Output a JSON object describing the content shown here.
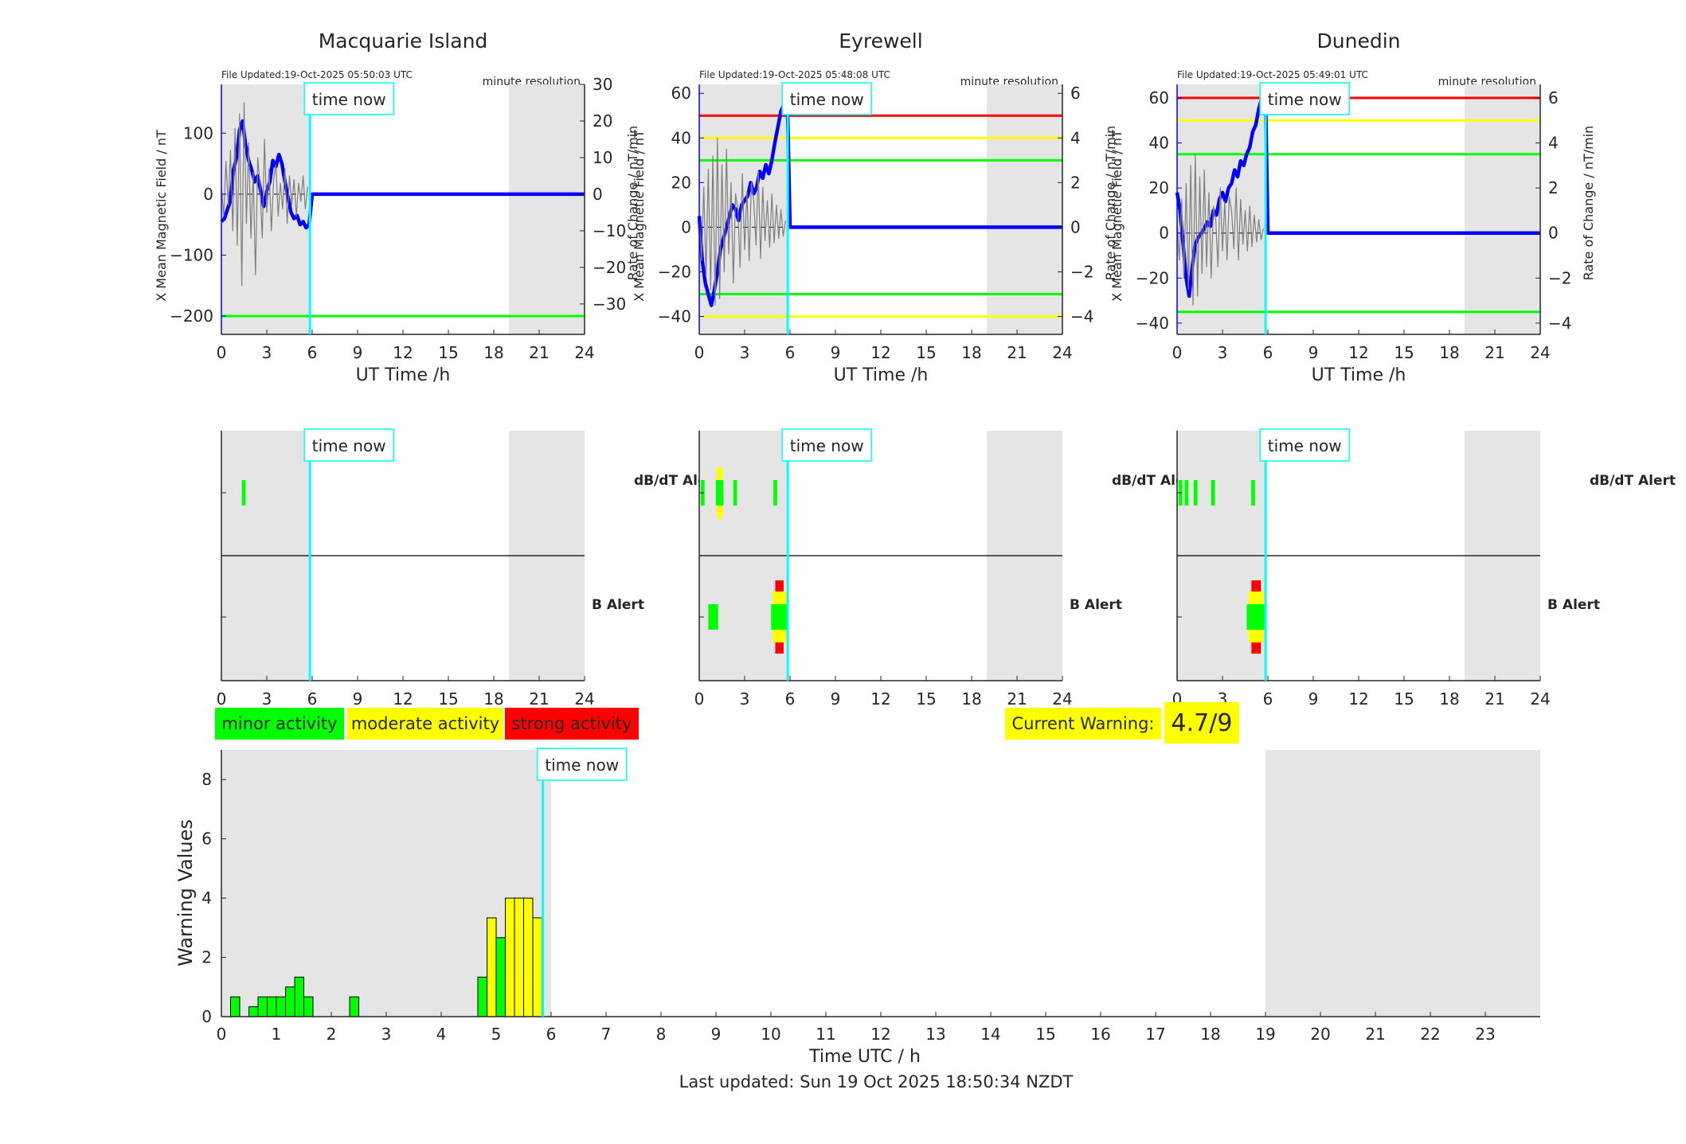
{
  "page": {
    "footer": "Last updated: Sun 19 Oct 2025 18:50:34 NZDT",
    "current_warning_label": "Current Warning:",
    "current_warning_value": "4.7/9",
    "colors": {
      "minor": "#00ff00",
      "moderate": "#ffff00",
      "strong": "#ff0000",
      "x_series": "#0000ff",
      "now_line": "#00ffff",
      "shade": "#e5e5e5"
    }
  },
  "legend": {
    "minor": "minor activity",
    "moderate": "moderate activity",
    "strong": "strong activity"
  },
  "chart_data": [
    {
      "id": "macquarie",
      "type": "line",
      "title": "Macquarie Island",
      "file_updated": "File Updated:19-Oct-2025 05:50:03 UTC",
      "resolution": "minute resolution",
      "now_label": "time now",
      "xlabel": "UT Time /h",
      "ylabel_left": "X Mean Magnetic Field / nT",
      "ylabel_right": "Rate of Change / nT/min",
      "xlim": [
        0,
        24
      ],
      "xticks": [
        0,
        3,
        6,
        9,
        12,
        15,
        18,
        21,
        24
      ],
      "ylim_left": [
        -230,
        180
      ],
      "yticks_left": [
        -200,
        -100,
        0,
        100
      ],
      "ylim_right": [
        -38.3,
        30
      ],
      "yticks_right": [
        -30,
        -20,
        -10,
        0,
        10,
        20,
        30
      ],
      "grid": false,
      "time_now": 5.85,
      "shade_spans": [
        [
          0,
          5.85
        ],
        [
          19,
          24
        ]
      ],
      "thresholds": [
        {
          "value": -200,
          "color": "#00ff00"
        }
      ],
      "series": [
        {
          "axis": "left",
          "color": "#0000ff",
          "x": [
            0,
            0.2,
            0.4,
            0.6,
            0.8,
            1.0,
            1.2,
            1.4,
            1.6,
            1.8,
            2.0,
            2.2,
            2.4,
            2.6,
            2.8,
            3.0,
            3.2,
            3.4,
            3.6,
            3.8,
            4.0,
            4.2,
            4.4,
            4.6,
            4.8,
            5.0,
            5.2,
            5.4,
            5.6,
            5.8,
            6,
            24
          ],
          "values": [
            -45,
            -40,
            -25,
            -10,
            40,
            60,
            105,
            120,
            80,
            55,
            40,
            20,
            30,
            5,
            -20,
            5,
            20,
            55,
            45,
            65,
            50,
            20,
            -5,
            -30,
            -40,
            -35,
            -50,
            -45,
            -55,
            -50,
            0,
            0
          ]
        },
        {
          "axis": "right",
          "color": "#7f7f7f",
          "x": [
            0,
            0.15,
            0.3,
            0.45,
            0.6,
            0.75,
            0.9,
            1.05,
            1.2,
            1.35,
            1.5,
            1.65,
            1.8,
            1.95,
            2.1,
            2.25,
            2.4,
            2.55,
            2.7,
            2.85,
            3.0,
            3.15,
            3.3,
            3.45,
            3.6,
            3.75,
            3.9,
            4.05,
            4.2,
            4.35,
            4.5,
            4.65,
            4.8,
            4.95,
            5.1,
            5.25,
            5.4,
            5.55,
            5.7
          ],
          "values": [
            2,
            -6,
            9,
            -3,
            12,
            -10,
            18,
            -14,
            22,
            -25,
            25,
            -8,
            14,
            -12,
            6,
            -22,
            10,
            3,
            -12,
            15,
            -5,
            7,
            -10,
            4,
            8,
            -6,
            3,
            -4,
            7,
            -8,
            5,
            -3,
            4,
            -6,
            3,
            -2,
            5,
            -4,
            2
          ]
        }
      ]
    },
    {
      "id": "eyrewell",
      "type": "line",
      "title": "Eyrewell",
      "file_updated": "File Updated:19-Oct-2025 05:48:08 UTC",
      "resolution": "minute resolution",
      "now_label": "time now",
      "xlabel": "UT Time /h",
      "ylabel_left": "X Mean Magnetic Field / nT",
      "ylabel_right": "Rate of Change / nT/min",
      "xlim": [
        0,
        24
      ],
      "xticks": [
        0,
        3,
        6,
        9,
        12,
        15,
        18,
        21,
        24
      ],
      "ylim_left": [
        -48,
        64
      ],
      "yticks_left": [
        -40,
        -20,
        0,
        20,
        40,
        60
      ],
      "ylim_right": [
        -4.8,
        6.4
      ],
      "yticks_right": [
        -4,
        -2,
        0,
        2,
        4,
        6
      ],
      "grid": false,
      "time_now": 5.85,
      "shade_spans": [
        [
          0,
          5.85
        ],
        [
          19,
          24
        ]
      ],
      "thresholds": [
        {
          "value": 50,
          "color": "#ff0000"
        },
        {
          "value": 40,
          "color": "#ffff00"
        },
        {
          "value": 30,
          "color": "#00ff00"
        },
        {
          "value": -30,
          "color": "#00ff00"
        },
        {
          "value": -40,
          "color": "#ffff00"
        }
      ],
      "series": [
        {
          "axis": "left",
          "color": "#0000ff",
          "x": [
            0,
            0.2,
            0.4,
            0.6,
            0.8,
            1.0,
            1.2,
            1.4,
            1.6,
            1.8,
            2.0,
            2.2,
            2.4,
            2.6,
            2.8,
            3.0,
            3.2,
            3.4,
            3.6,
            3.8,
            4.0,
            4.2,
            4.4,
            4.6,
            4.8,
            5.0,
            5.2,
            5.4,
            5.6,
            5.85,
            6,
            24
          ],
          "values": [
            5,
            -15,
            -25,
            -30,
            -35,
            -28,
            -20,
            -10,
            -5,
            0,
            5,
            10,
            8,
            3,
            10,
            12,
            14,
            20,
            15,
            18,
            25,
            22,
            28,
            24,
            30,
            38,
            45,
            52,
            55,
            50,
            0,
            0
          ]
        },
        {
          "axis": "right",
          "color": "#7f7f7f",
          "x": [
            0,
            0.15,
            0.3,
            0.45,
            0.6,
            0.75,
            0.9,
            1.05,
            1.2,
            1.35,
            1.5,
            1.65,
            1.8,
            1.95,
            2.1,
            2.25,
            2.4,
            2.55,
            2.7,
            2.85,
            3.0,
            3.15,
            3.3,
            3.45,
            3.6,
            3.75,
            3.9,
            4.05,
            4.2,
            4.35,
            4.5,
            4.65,
            4.8,
            4.95,
            5.1,
            5.25,
            5.4,
            5.55,
            5.7
          ],
          "values": [
            0.5,
            -1.5,
            1.8,
            -2.2,
            2.6,
            -2.8,
            3.2,
            -3.5,
            4.0,
            -3.2,
            2.8,
            -2.0,
            3.5,
            -1.2,
            2.0,
            -2.5,
            1.5,
            0.8,
            -1.8,
            2.4,
            -1.0,
            1.6,
            -1.5,
            2.0,
            1.2,
            -0.8,
            2.5,
            -1.4,
            1.8,
            -0.6,
            1.2,
            -0.9,
            1.5,
            -0.7,
            1.0,
            -0.5,
            0.8,
            -0.4,
            0.3
          ]
        }
      ]
    },
    {
      "id": "dunedin",
      "type": "line",
      "title": "Dunedin",
      "file_updated": "File Updated:19-Oct-2025 05:49:01 UTC",
      "resolution": "minute resolution",
      "now_label": "time now",
      "xlabel": "UT Time /h",
      "ylabel_left": "X Mean Magnetic Field / nT",
      "ylabel_right": "Rate of Change / nT/min",
      "xlim": [
        0,
        24
      ],
      "xticks": [
        0,
        3,
        6,
        9,
        12,
        15,
        18,
        21,
        24
      ],
      "ylim_left": [
        -45,
        66
      ],
      "yticks_left": [
        -40,
        -20,
        0,
        20,
        40,
        60
      ],
      "ylim_right": [
        -4.5,
        6.6
      ],
      "yticks_right": [
        -4,
        -2,
        0,
        2,
        4,
        6
      ],
      "grid": false,
      "time_now": 5.85,
      "shade_spans": [
        [
          0,
          5.85
        ],
        [
          19,
          24
        ]
      ],
      "thresholds": [
        {
          "value": 60,
          "color": "#ff0000"
        },
        {
          "value": 50,
          "color": "#ffff00"
        },
        {
          "value": 35,
          "color": "#00ff00"
        },
        {
          "value": -35,
          "color": "#00ff00"
        }
      ],
      "series": [
        {
          "axis": "left",
          "color": "#0000ff",
          "x": [
            0,
            0.2,
            0.4,
            0.6,
            0.8,
            1.0,
            1.2,
            1.4,
            1.6,
            1.8,
            2.0,
            2.2,
            2.4,
            2.6,
            2.8,
            3.0,
            3.2,
            3.4,
            3.6,
            3.8,
            4.0,
            4.2,
            4.4,
            4.6,
            4.8,
            5.0,
            5.2,
            5.4,
            5.6,
            5.85,
            6,
            24
          ],
          "values": [
            18,
            10,
            -5,
            -20,
            -28,
            -15,
            -5,
            -2,
            0,
            2,
            5,
            3,
            10,
            8,
            15,
            18,
            14,
            20,
            22,
            28,
            25,
            32,
            30,
            35,
            38,
            45,
            48,
            55,
            60,
            58,
            0,
            0
          ]
        },
        {
          "axis": "right",
          "color": "#7f7f7f",
          "x": [
            0,
            0.15,
            0.3,
            0.45,
            0.6,
            0.75,
            0.9,
            1.05,
            1.2,
            1.35,
            1.5,
            1.65,
            1.8,
            1.95,
            2.1,
            2.25,
            2.4,
            2.55,
            2.7,
            2.85,
            3.0,
            3.15,
            3.3,
            3.45,
            3.6,
            3.75,
            3.9,
            4.05,
            4.2,
            4.35,
            4.5,
            4.65,
            4.8,
            4.95,
            5.1,
            5.25,
            5.4,
            5.55,
            5.7
          ],
          "values": [
            0.5,
            -1.2,
            1.5,
            -2.0,
            2.2,
            -2.5,
            3.0,
            -3.2,
            3.5,
            -2.8,
            2.5,
            -1.8,
            2.8,
            -1.5,
            1.8,
            -2.0,
            1.2,
            0.6,
            -1.5,
            2.0,
            -0.8,
            1.4,
            -1.2,
            1.6,
            1.0,
            -0.7,
            2.0,
            -1.2,
            1.5,
            -0.5,
            1.0,
            -0.8,
            1.2,
            -0.6,
            0.8,
            -0.4,
            0.6,
            -0.3,
            0.2
          ]
        }
      ]
    },
    {
      "id": "alert-macquarie",
      "type": "heatmap",
      "row_labels": [
        "dB/dT Alert",
        "B Alert"
      ],
      "now_label": "time now",
      "xlim": [
        0,
        24
      ],
      "xticks": [
        0,
        3,
        6,
        9,
        12,
        15,
        18,
        21,
        24
      ],
      "time_now": 5.85,
      "shade_spans": [
        [
          0,
          5.85
        ],
        [
          19,
          24
        ]
      ],
      "dbdt_alerts": [
        {
          "start": 1.35,
          "end": 1.6,
          "level": 1
        }
      ],
      "b_alerts": []
    },
    {
      "id": "alert-eyrewell",
      "type": "heatmap",
      "row_labels": [
        "dB/dT Alert",
        "B Alert"
      ],
      "now_label": "time now",
      "xlim": [
        0,
        24
      ],
      "xticks": [
        0,
        3,
        6,
        9,
        12,
        15,
        18,
        21,
        24
      ],
      "time_now": 5.85,
      "shade_spans": [
        [
          0,
          5.85
        ],
        [
          19,
          24
        ]
      ],
      "dbdt_alerts": [
        {
          "start": 0.1,
          "end": 0.35,
          "level": 1
        },
        {
          "start": 1.1,
          "end": 1.6,
          "level": 2
        },
        {
          "start": 2.25,
          "end": 2.5,
          "level": 1
        },
        {
          "start": 4.9,
          "end": 5.15,
          "level": 1
        }
      ],
      "b_alerts": [
        {
          "start": 0.6,
          "end": 1.25,
          "level": 1
        },
        {
          "start": 4.75,
          "end": 5.85,
          "level": 3
        }
      ]
    },
    {
      "id": "alert-dunedin",
      "type": "heatmap",
      "row_labels": [
        "dB/dT Alert",
        "B Alert"
      ],
      "now_label": "time now",
      "xlim": [
        0,
        24
      ],
      "xticks": [
        0,
        3,
        6,
        9,
        12,
        15,
        18,
        21,
        24
      ],
      "time_now": 5.85,
      "shade_spans": [
        [
          0,
          5.85
        ],
        [
          19,
          24
        ]
      ],
      "dbdt_alerts": [
        {
          "start": 0.1,
          "end": 0.35,
          "level": 1
        },
        {
          "start": 0.5,
          "end": 0.75,
          "level": 1
        },
        {
          "start": 1.1,
          "end": 1.35,
          "level": 1
        },
        {
          "start": 2.25,
          "end": 2.5,
          "level": 1
        },
        {
          "start": 4.9,
          "end": 5.15,
          "level": 1
        }
      ],
      "b_alerts": [
        {
          "start": 4.6,
          "end": 5.85,
          "level": 3
        }
      ]
    },
    {
      "id": "warning",
      "type": "bar",
      "now_label": "time now",
      "xlabel": "Time UTC / h",
      "ylabel": "Warning Values",
      "xlim": [
        0,
        24
      ],
      "xticks": [
        0,
        1,
        2,
        3,
        4,
        5,
        6,
        7,
        8,
        9,
        10,
        11,
        12,
        13,
        14,
        15,
        16,
        17,
        18,
        19,
        20,
        21,
        22,
        23
      ],
      "ylim": [
        0,
        9
      ],
      "yticks": [
        0,
        2,
        4,
        6,
        8
      ],
      "grid": false,
      "time_now": 5.85,
      "shade_spans": [
        [
          0,
          6
        ],
        [
          19,
          24
        ]
      ],
      "bin_width": 0.1667,
      "bins": [
        {
          "x": 0.25,
          "value": 0.667,
          "level": "minor"
        },
        {
          "x": 0.583,
          "value": 0.333,
          "level": "minor"
        },
        {
          "x": 0.75,
          "value": 0.667,
          "level": "minor"
        },
        {
          "x": 0.917,
          "value": 0.667,
          "level": "minor"
        },
        {
          "x": 1.083,
          "value": 0.667,
          "level": "minor"
        },
        {
          "x": 1.25,
          "value": 1.0,
          "level": "minor"
        },
        {
          "x": 1.417,
          "value": 1.333,
          "level": "minor"
        },
        {
          "x": 1.583,
          "value": 0.667,
          "level": "minor"
        },
        {
          "x": 2.417,
          "value": 0.667,
          "level": "minor"
        },
        {
          "x": 4.75,
          "value": 1.333,
          "level": "minor"
        },
        {
          "x": 4.917,
          "value": 3.333,
          "level": "moderate"
        },
        {
          "x": 5.083,
          "value": 2.667,
          "level": "minor"
        },
        {
          "x": 5.25,
          "value": 4.0,
          "level": "moderate"
        },
        {
          "x": 5.417,
          "value": 4.0,
          "level": "moderate"
        },
        {
          "x": 5.583,
          "value": 4.0,
          "level": "moderate"
        },
        {
          "x": 5.75,
          "value": 3.333,
          "level": "moderate"
        }
      ]
    }
  ]
}
